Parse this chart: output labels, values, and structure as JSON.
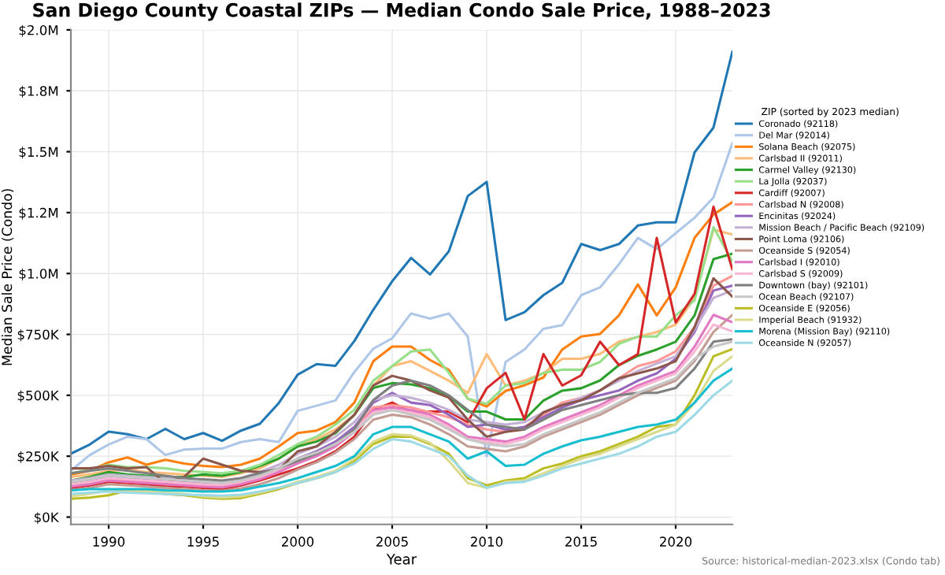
{
  "chart_data": {
    "type": "line",
    "title": "San Diego County Coastal ZIPs — Median Condo Sale Price, 1988–2023",
    "xlabel": "Year",
    "ylabel": "Median Sale Price (Condo)",
    "legend_title": "ZIP (sorted by 2023 median)",
    "annotations": [
      "Source: historical-median-2023.xlsx (Condo tab)"
    ],
    "x": [
      1988,
      1989,
      1990,
      1991,
      1992,
      1993,
      1994,
      1995,
      1996,
      1997,
      1998,
      1999,
      2000,
      2001,
      2002,
      2003,
      2004,
      2005,
      2006,
      2007,
      2008,
      2009,
      2010,
      2011,
      2012,
      2013,
      2014,
      2015,
      2016,
      2017,
      2018,
      2019,
      2020,
      2021,
      2022,
      2023
    ],
    "xlim": [
      1988,
      2023
    ],
    "xticks": [
      1990,
      1995,
      2000,
      2005,
      2010,
      2015,
      2020
    ],
    "ylim": [
      -30000,
      2000000
    ],
    "yticks": [
      {
        "value": 0,
        "label": "$0K"
      },
      {
        "value": 250000,
        "label": "$250K"
      },
      {
        "value": 500000,
        "label": "$500K"
      },
      {
        "value": 750000,
        "label": "$750K"
      },
      {
        "value": 1000000,
        "label": "$1.0M"
      },
      {
        "value": 1250000,
        "label": "$1.2M"
      },
      {
        "value": 1500000,
        "label": "$1.5M"
      },
      {
        "value": 1750000,
        "label": "$1.8M"
      },
      {
        "value": 2000000,
        "label": "$2.0M"
      }
    ],
    "grid": true,
    "legend": "right",
    "marker": "none",
    "line_style": "solid",
    "series": [
      {
        "name": "Coronado (92118)",
        "color": "#1f77b4",
        "values": [
          260000,
          298000,
          351000,
          340000,
          320000,
          362000,
          320000,
          345000,
          313000,
          355000,
          383000,
          468000,
          585000,
          628000,
          621000,
          723000,
          851000,
          968000,
          1064000,
          996000,
          1091000,
          1318000,
          1376000,
          809000,
          841000,
          911000,
          962000,
          1121000,
          1096000,
          1121000,
          1197000,
          1210000,
          1210000,
          1497000,
          1599000,
          1911000
        ]
      },
      {
        "name": "Del Mar (92014)",
        "color": "#aec7e8",
        "values": [
          191000,
          255000,
          298000,
          330000,
          320000,
          255000,
          277000,
          281000,
          281000,
          308000,
          320000,
          308000,
          436000,
          457000,
          479000,
          596000,
          691000,
          734000,
          836000,
          815000,
          836000,
          741000,
          250000,
          637000,
          688000,
          773000,
          788000,
          911000,
          943000,
          1038000,
          1146000,
          1100000,
          1165000,
          1229000,
          1312000,
          1535000
        ]
      },
      {
        "name": "Solana Beach (92075)",
        "color": "#ff7f0e",
        "values": [
          175000,
          190000,
          225000,
          245000,
          215000,
          235000,
          220000,
          210000,
          205000,
          215000,
          240000,
          290000,
          345000,
          355000,
          390000,
          470000,
          640000,
          700000,
          700000,
          645000,
          604000,
          486000,
          454000,
          518000,
          541000,
          573000,
          688000,
          741000,
          752000,
          828000,
          955000,
          828000,
          943000,
          1146000,
          1242000,
          1293000
        ]
      },
      {
        "name": "Carlsbad II (92011)",
        "color": "#ffbb78",
        "values": [
          165000,
          175000,
          190000,
          195000,
          185000,
          180000,
          175000,
          170000,
          165000,
          180000,
          200000,
          240000,
          290000,
          320000,
          360000,
          420000,
          540000,
          620000,
          640000,
          600000,
          560000,
          510000,
          669000,
          540000,
          560000,
          590000,
          650000,
          650000,
          670000,
          720000,
          740000,
          760000,
          790000,
          900000,
          1180000,
          1160000
        ]
      },
      {
        "name": "Carmel Valley (92130)",
        "color": "#2ca02c",
        "values": [
          150000,
          165000,
          185000,
          175000,
          170000,
          165000,
          165000,
          175000,
          170000,
          185000,
          210000,
          240000,
          290000,
          310000,
          345000,
          420000,
          530000,
          550000,
          545000,
          529000,
          497000,
          433000,
          433000,
          401000,
          401000,
          478000,
          519000,
          529000,
          561000,
          624000,
          662000,
          688000,
          720000,
          828000,
          1059000,
          1081000
        ]
      },
      {
        "name": "La Jolla (92037)",
        "color": "#98df8a",
        "values": [
          180000,
          195000,
          215000,
          205000,
          205000,
          200000,
          190000,
          185000,
          180000,
          190000,
          215000,
          255000,
          300000,
          330000,
          380000,
          440000,
          560000,
          620000,
          680000,
          688000,
          592000,
          486000,
          465000,
          540000,
          550000,
          592000,
          605000,
          605000,
          637000,
          711000,
          741000,
          741000,
          828000,
          890000,
          1190000,
          1050000
        ]
      },
      {
        "name": "Cardiff (92007)",
        "color": "#d62728",
        "values": [
          120000,
          130000,
          145000,
          140000,
          135000,
          125000,
          125000,
          120000,
          115000,
          130000,
          150000,
          175000,
          200000,
          230000,
          270000,
          330000,
          440000,
          470000,
          430000,
          433000,
          433000,
          390000,
          529000,
          592000,
          401000,
          669000,
          540000,
          582000,
          720000,
          624000,
          669000,
          1146000,
          799000,
          916000,
          1274000,
          1017000
        ]
      },
      {
        "name": "Carlsbad N (92008)",
        "color": "#ff9896",
        "values": [
          130000,
          140000,
          155000,
          150000,
          145000,
          140000,
          135000,
          130000,
          128000,
          140000,
          160000,
          190000,
          225000,
          255000,
          300000,
          360000,
          450000,
          460000,
          450000,
          430000,
          410000,
          380000,
          360000,
          350000,
          370000,
          420000,
          470000,
          490000,
          520000,
          570000,
          620000,
          640000,
          680000,
          780000,
          950000,
          990000
        ]
      },
      {
        "name": "Encinitas (92024)",
        "color": "#9467bd",
        "values": [
          140000,
          150000,
          165000,
          160000,
          155000,
          150000,
          145000,
          140000,
          138000,
          150000,
          170000,
          200000,
          240000,
          270000,
          310000,
          370000,
          470000,
          510000,
          470000,
          460000,
          420000,
          370000,
          380000,
          360000,
          370000,
          410000,
          450000,
          480000,
          500000,
          520000,
          560000,
          590000,
          650000,
          760000,
          930000,
          950000
        ]
      },
      {
        "name": "Mission Beach / Pacific Beach (92109)",
        "color": "#c5b0d5",
        "values": [
          150000,
          160000,
          175000,
          170000,
          165000,
          160000,
          155000,
          150000,
          148000,
          160000,
          185000,
          215000,
          260000,
          290000,
          330000,
          390000,
          480000,
          500000,
          490000,
          470000,
          440000,
          400000,
          390000,
          380000,
          390000,
          430000,
          460000,
          490000,
          520000,
          560000,
          600000,
          630000,
          660000,
          770000,
          900000,
          930000
        ]
      },
      {
        "name": "Point Loma (92106)",
        "color": "#8c564b",
        "values": [
          200000,
          200000,
          210000,
          200000,
          205000,
          140000,
          165000,
          240000,
          215000,
          190000,
          185000,
          195000,
          270000,
          290000,
          350000,
          420000,
          540000,
          580000,
          560000,
          520000,
          490000,
          400000,
          330000,
          350000,
          360000,
          430000,
          460000,
          480000,
          520000,
          570000,
          590000,
          610000,
          640000,
          780000,
          980000,
          905000
        ]
      },
      {
        "name": "Oceanside S (92054)",
        "color": "#c49c94",
        "values": [
          110000,
          120000,
          135000,
          130000,
          125000,
          120000,
          115000,
          110000,
          108000,
          118000,
          135000,
          160000,
          195000,
          225000,
          265000,
          320000,
          400000,
          420000,
          410000,
          380000,
          340000,
          290000,
          280000,
          270000,
          290000,
          330000,
          360000,
          390000,
          420000,
          460000,
          500000,
          530000,
          560000,
          640000,
          760000,
          830000
        ]
      },
      {
        "name": "Carlsbad I (92010)",
        "color": "#e377c2",
        "values": [
          125000,
          135000,
          150000,
          145000,
          140000,
          135000,
          130000,
          125000,
          122000,
          135000,
          155000,
          185000,
          220000,
          250000,
          290000,
          350000,
          440000,
          450000,
          440000,
          420000,
          380000,
          330000,
          320000,
          310000,
          330000,
          370000,
          400000,
          430000,
          460000,
          500000,
          540000,
          570000,
          600000,
          700000,
          830000,
          800000
        ]
      },
      {
        "name": "Carlsbad S (92009)",
        "color": "#f7b6d2",
        "values": [
          135000,
          145000,
          160000,
          155000,
          150000,
          145000,
          140000,
          135000,
          132000,
          145000,
          165000,
          195000,
          230000,
          260000,
          300000,
          360000,
          430000,
          440000,
          430000,
          410000,
          370000,
          320000,
          310000,
          300000,
          320000,
          360000,
          390000,
          420000,
          450000,
          490000,
          530000,
          560000,
          590000,
          680000,
          790000,
          763000
        ]
      },
      {
        "name": "Downtown (bay) (92101)",
        "color": "#7f7f7f",
        "values": [
          180000,
          190000,
          200000,
          190000,
          180000,
          170000,
          160000,
          155000,
          150000,
          160000,
          180000,
          200000,
          230000,
          260000,
          300000,
          360000,
          480000,
          540000,
          560000,
          540000,
          500000,
          440000,
          380000,
          370000,
          360000,
          400000,
          440000,
          460000,
          480000,
          500000,
          510000,
          510000,
          530000,
          610000,
          720000,
          730000
        ]
      },
      {
        "name": "Ocean Beach (92107)",
        "color": "#c7c7c7",
        "values": [
          145000,
          155000,
          170000,
          165000,
          160000,
          155000,
          150000,
          145000,
          140000,
          150000,
          170000,
          200000,
          240000,
          265000,
          300000,
          350000,
          420000,
          440000,
          420000,
          400000,
          360000,
          320000,
          300000,
          290000,
          300000,
          340000,
          370000,
          400000,
          430000,
          470000,
          510000,
          540000,
          570000,
          650000,
          700000,
          720000
        ]
      },
      {
        "name": "Oceanside E (92056)",
        "color": "#bcbd22",
        "values": [
          75000,
          80000,
          90000,
          110000,
          105000,
          95000,
          90000,
          80000,
          75000,
          78000,
          95000,
          115000,
          140000,
          160000,
          185000,
          230000,
          300000,
          330000,
          330000,
          300000,
          260000,
          160000,
          130000,
          150000,
          160000,
          200000,
          220000,
          250000,
          270000,
          300000,
          330000,
          370000,
          380000,
          500000,
          660000,
          690000
        ]
      },
      {
        "name": "Imperial Beach (91932)",
        "color": "#dbdb8d",
        "values": [
          85000,
          95000,
          110000,
          110000,
          105000,
          100000,
          95000,
          85000,
          80000,
          85000,
          100000,
          120000,
          145000,
          165000,
          190000,
          240000,
          310000,
          340000,
          335000,
          305000,
          230000,
          140000,
          120000,
          145000,
          150000,
          180000,
          210000,
          240000,
          260000,
          290000,
          320000,
          350000,
          380000,
          470000,
          600000,
          660000
        ]
      },
      {
        "name": "Morena (Mission Bay) (92110)",
        "color": "#17becf",
        "values": [
          110000,
          115000,
          115000,
          115000,
          115000,
          110000,
          108000,
          105000,
          105000,
          110000,
          125000,
          140000,
          160000,
          185000,
          210000,
          250000,
          340000,
          370000,
          370000,
          340000,
          310000,
          240000,
          270000,
          210000,
          215000,
          260000,
          290000,
          315000,
          330000,
          350000,
          370000,
          380000,
          400000,
          470000,
          560000,
          610000
        ]
      },
      {
        "name": "Oceanside N (92057)",
        "color": "#9edae5",
        "values": [
          95000,
          100000,
          105000,
          100000,
          98000,
          95000,
          92000,
          90000,
          88000,
          92000,
          105000,
          120000,
          140000,
          160000,
          185000,
          220000,
          280000,
          320000,
          310000,
          280000,
          250000,
          170000,
          120000,
          140000,
          145000,
          170000,
          200000,
          220000,
          240000,
          260000,
          290000,
          330000,
          350000,
          420000,
          500000,
          560000
        ]
      }
    ]
  }
}
